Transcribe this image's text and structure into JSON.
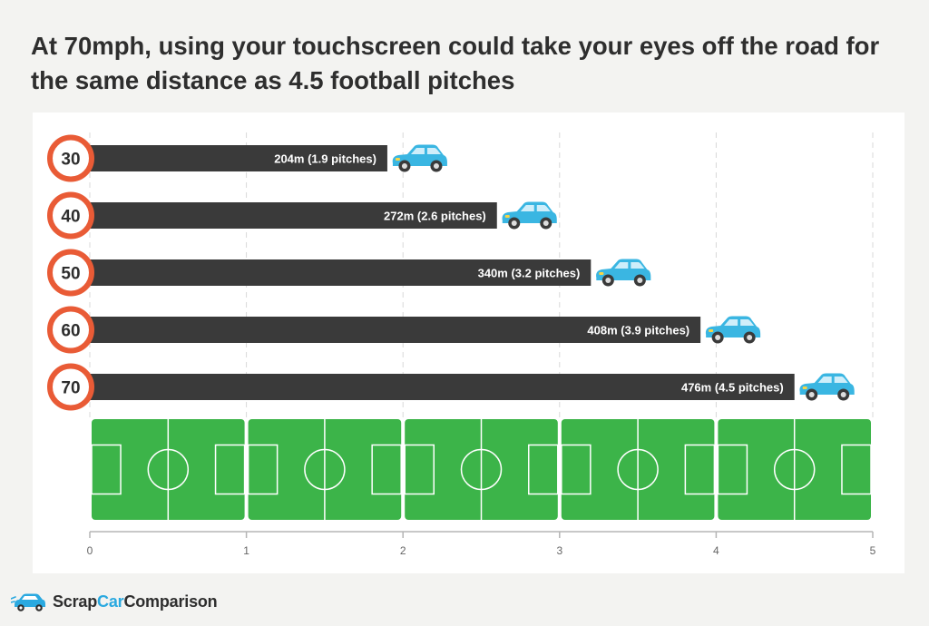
{
  "title": "At 70mph, using your touchscreen could take your eyes off the road for the same distance as 4.5 football pitches",
  "brand": {
    "part1": "Scrap",
    "part2": "Car",
    "part3": "Comparison"
  },
  "colors": {
    "bar": "#3a3a3a",
    "sign_ring": "#e95b36",
    "pitch": "#3cb449",
    "car": "#3ab6e2",
    "grid": "#d9d9d9",
    "axis": "#b5b5b5",
    "text": "#2e2e2e"
  },
  "icons": [
    "speed-limit-sign-icon",
    "car-icon",
    "football-pitch-icon",
    "scrapcarcomparison-logo-icon"
  ],
  "chart_data": {
    "type": "bar",
    "orientation": "horizontal",
    "categories": [
      "30",
      "40",
      "50",
      "60",
      "70"
    ],
    "values": [
      1.9,
      2.6,
      3.2,
      3.9,
      4.5
    ],
    "labels": [
      "204m (1.9 pitches)",
      "272m (2.6 pitches)",
      "340m (3.2 pitches)",
      "408m (3.9 pitches)",
      "476m (4.5 pitches)"
    ],
    "x_ticks": [
      "0",
      "1",
      "2",
      "3",
      "4",
      "5"
    ],
    "xlim": [
      0,
      5
    ],
    "pitches": 5,
    "grid": true,
    "legend": "none"
  }
}
